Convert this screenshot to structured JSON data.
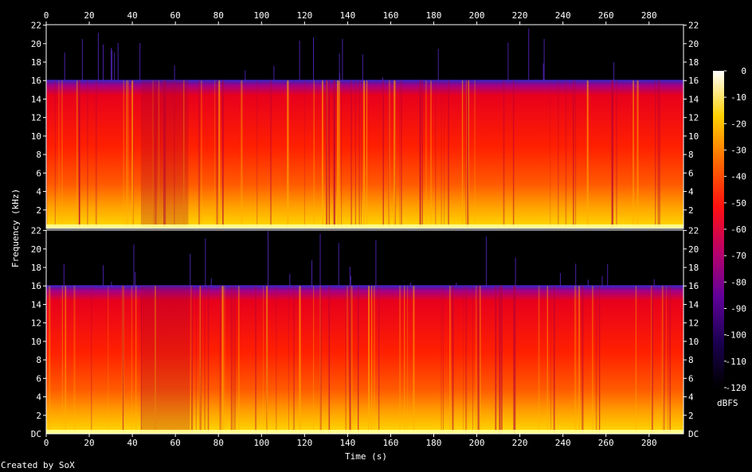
{
  "footer": {
    "credit": "Created by SoX"
  },
  "chart_data": {
    "type": "heatmap",
    "title": "",
    "xlabel": "Time (s)",
    "ylabel": "Frequency (kHz)",
    "colorbar_label": "dBFS",
    "x_range": [
      0,
      296
    ],
    "x_ticks": [
      0,
      20,
      40,
      60,
      80,
      100,
      120,
      140,
      160,
      180,
      200,
      220,
      240,
      260,
      280
    ],
    "y_range_khz": [
      0,
      22.05
    ],
    "y_ticks_khz": [
      2,
      4,
      6,
      8,
      10,
      12,
      14,
      16,
      18,
      20,
      22
    ],
    "y_bottom_label": "DC",
    "colorbar_ticks": [
      0,
      -10,
      -20,
      -30,
      -40,
      -50,
      -60,
      -70,
      -80,
      -90,
      -100,
      -110,
      -120
    ],
    "colorbar_range": [
      -120,
      0
    ],
    "channels": [
      {
        "channel": 1,
        "cutoff_khz": 16.0
      },
      {
        "channel": 2,
        "cutoff_khz": 16.0
      }
    ],
    "colors": {
      "background": "#000000",
      "axis": "#ffffff",
      "scale": [
        "#000000",
        "#1a0050",
        "#60009a",
        "#b8006a",
        "#ff1010",
        "#ff6a00",
        "#ffd000",
        "#ffffff"
      ]
    }
  }
}
